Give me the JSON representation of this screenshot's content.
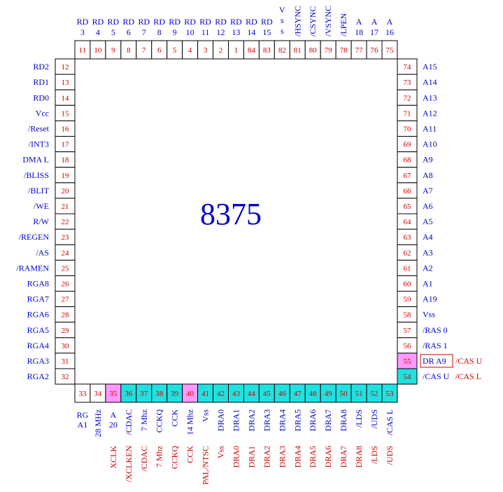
{
  "chip_label": "8375",
  "colors": {
    "blue": "#0000cc",
    "red": "#cc0000",
    "cyan": "#22e0e0",
    "pink": "#ff99ff"
  },
  "top_pins": [
    {
      "num": "11",
      "label": [
        "RD",
        "3"
      ]
    },
    {
      "num": "10",
      "label": [
        "RD",
        "4"
      ]
    },
    {
      "num": "9",
      "label": [
        "RD",
        "5"
      ]
    },
    {
      "num": "8",
      "label": [
        "RD",
        "6"
      ]
    },
    {
      "num": "7",
      "label": [
        "RD",
        "7"
      ]
    },
    {
      "num": "6",
      "label": [
        "RD",
        "8"
      ]
    },
    {
      "num": "5",
      "label": [
        "RD",
        "9"
      ]
    },
    {
      "num": "4",
      "label": [
        "RD",
        "10"
      ]
    },
    {
      "num": "3",
      "label": [
        "RD",
        "11"
      ]
    },
    {
      "num": "2",
      "label": [
        "RD",
        "12"
      ]
    },
    {
      "num": "1",
      "label": [
        "RD",
        "13"
      ]
    },
    {
      "num": "84",
      "label": [
        "RD",
        "14"
      ]
    },
    {
      "num": "83",
      "label": [
        "RD",
        "15"
      ]
    },
    {
      "num": "82",
      "label": [
        "V",
        "s",
        "s"
      ]
    },
    {
      "num": "81",
      "vlabel": "/HSYNC"
    },
    {
      "num": "80",
      "vlabel": "/CSYNC"
    },
    {
      "num": "79",
      "vlabel": "/VSYNC"
    },
    {
      "num": "78",
      "vlabel": "/LPEN"
    },
    {
      "num": "77",
      "label": [
        "A",
        "18"
      ]
    },
    {
      "num": "76",
      "label": [
        "A",
        "17"
      ]
    },
    {
      "num": "75",
      "label": [
        "A",
        "16"
      ]
    }
  ],
  "left_pins": [
    {
      "num": "12",
      "label": "RD2"
    },
    {
      "num": "13",
      "label": "RD1"
    },
    {
      "num": "14",
      "label": "RD0"
    },
    {
      "num": "15",
      "label": "Vcc"
    },
    {
      "num": "16",
      "label": "/Reset"
    },
    {
      "num": "17",
      "label": "/INT3"
    },
    {
      "num": "18",
      "label": "DMA L"
    },
    {
      "num": "19",
      "label": "/BLISS"
    },
    {
      "num": "20",
      "label": "/BLIT"
    },
    {
      "num": "21",
      "label": "/WE"
    },
    {
      "num": "22",
      "label": "R/W"
    },
    {
      "num": "23",
      "label": "/REGEN"
    },
    {
      "num": "24",
      "label": "/AS"
    },
    {
      "num": "25",
      "label": "/RAMEN"
    },
    {
      "num": "26",
      "label": "RGA8"
    },
    {
      "num": "27",
      "label": "RGA7"
    },
    {
      "num": "28",
      "label": "RGA6"
    },
    {
      "num": "29",
      "label": "RGA5"
    },
    {
      "num": "30",
      "label": "RGA4"
    },
    {
      "num": "31",
      "label": "RGA3"
    },
    {
      "num": "32",
      "label": "RGA2"
    }
  ],
  "right_pins": [
    {
      "num": "74",
      "label": "A15"
    },
    {
      "num": "73",
      "label": "A14"
    },
    {
      "num": "72",
      "label": "A13"
    },
    {
      "num": "71",
      "label": "A12"
    },
    {
      "num": "70",
      "label": "A11"
    },
    {
      "num": "69",
      "label": "A10"
    },
    {
      "num": "68",
      "label": "A9"
    },
    {
      "num": "67",
      "label": "A8"
    },
    {
      "num": "66",
      "label": "A7"
    },
    {
      "num": "65",
      "label": "A6"
    },
    {
      "num": "64",
      "label": "A5"
    },
    {
      "num": "63",
      "label": "A4"
    },
    {
      "num": "62",
      "label": "A3"
    },
    {
      "num": "61",
      "label": "A2"
    },
    {
      "num": "60",
      "label": "A1"
    },
    {
      "num": "59",
      "label": "A19"
    },
    {
      "num": "58",
      "label": "Vss"
    },
    {
      "num": "57",
      "label": "/RAS 0"
    },
    {
      "num": "56",
      "label": "/RAS 1"
    },
    {
      "num": "55",
      "label": "DR A9",
      "boxed": true,
      "alt": "/CAS U",
      "hl": "pink"
    },
    {
      "num": "54",
      "label": "/CAS U",
      "alt": "/CAS L",
      "hl": "cyan"
    }
  ],
  "bottom_pins": [
    {
      "num": "33",
      "blue": [
        "RG",
        "A1"
      ]
    },
    {
      "num": "34",
      "vblue": "28 MHz"
    },
    {
      "num": "35",
      "blue": [
        "A",
        "20"
      ],
      "vred": "XCLK",
      "hl": "pink"
    },
    {
      "num": "36",
      "vblue": "/CDAC",
      "vred": "/XCLKEN",
      "hl": "cyan"
    },
    {
      "num": "37",
      "vblue": "7 Mhz",
      "vred": "/CDAC",
      "hl": "cyan"
    },
    {
      "num": "38",
      "vblue": "CCKQ",
      "vred": "7 Mhz",
      "hl": "cyan"
    },
    {
      "num": "39",
      "vblue": "CCK",
      "vred": "CCKQ",
      "hl": "cyan"
    },
    {
      "num": "40",
      "vblue": "14 Mhz",
      "vred": "CCK",
      "hl": "pink"
    },
    {
      "num": "41",
      "vblue": "Vss",
      "vred": "PAL/NTSC",
      "hl": "cyan"
    },
    {
      "num": "42",
      "vblue": "DRA0",
      "vred": "Vss",
      "hl": "cyan"
    },
    {
      "num": "43",
      "vblue": "DRA1",
      "vred": "DRA0",
      "hl": "cyan"
    },
    {
      "num": "44",
      "vblue": "DRA2",
      "vred": "DRA1",
      "hl": "cyan"
    },
    {
      "num": "45",
      "vblue": "DRA3",
      "vred": "DRA2",
      "hl": "cyan"
    },
    {
      "num": "46",
      "vblue": "DRA4",
      "vred": "DRA3",
      "hl": "cyan"
    },
    {
      "num": "47",
      "vblue": "DRA5",
      "vred": "DRA4",
      "hl": "cyan"
    },
    {
      "num": "48",
      "vblue": "DRA6",
      "vred": "DRA5",
      "hl": "cyan"
    },
    {
      "num": "49",
      "vblue": "DRA7",
      "vred": "DRA6",
      "hl": "cyan"
    },
    {
      "num": "50",
      "vblue": "DRA8",
      "vred": "DRA7",
      "hl": "cyan"
    },
    {
      "num": "51",
      "vblue": "/LDS",
      "vred": "DRA8",
      "hl": "cyan"
    },
    {
      "num": "52",
      "vblue": "/UDS",
      "vred": "/LDS",
      "hl": "cyan"
    },
    {
      "num": "53",
      "vblue": "/CAS L",
      "vred": "/UDS",
      "hl": "cyan"
    }
  ]
}
